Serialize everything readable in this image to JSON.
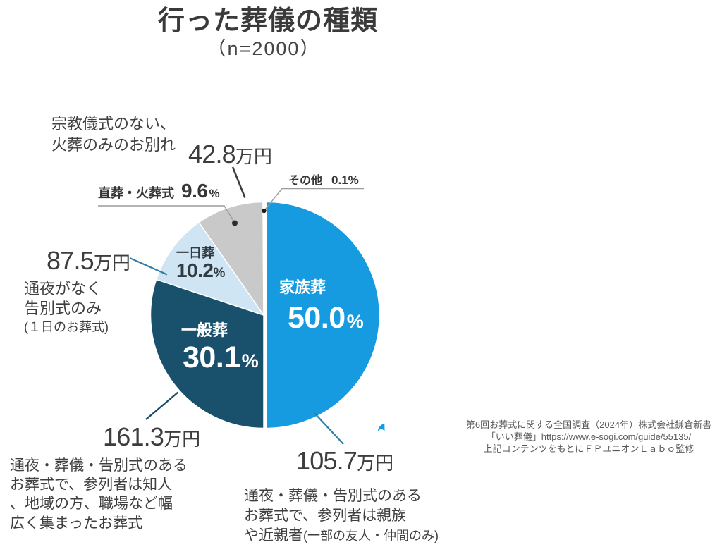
{
  "title": "行った葬儀の種類",
  "subtitle": "（n=2000）",
  "chart_data": {
    "type": "pie",
    "title": "行った葬儀の種類",
    "subtitle": "（n=2000）",
    "sample_size": 2000,
    "unit": "%",
    "start_angle_deg": 0,
    "direction": "clockwise",
    "slices": [
      {
        "label": "家族葬",
        "value": 50.0,
        "color": "#169BE0",
        "exploded": true,
        "average_cost": "105.7万円",
        "description": "通夜・葬儀・告別式のあるお葬式で、参列者は親族や近親者(一部の友人・仲間のみ)"
      },
      {
        "label": "一般葬",
        "value": 30.1,
        "color": "#19516C",
        "exploded": false,
        "average_cost": "161.3万円",
        "description": "通夜・葬儀・告別式のあるお葬式で、参列者は知人、地域の方、職場など幅広く集まったお葬式"
      },
      {
        "label": "一日葬",
        "value": 10.2,
        "color": "#CFE5F4",
        "exploded": false,
        "average_cost": "87.5万円",
        "description": "通夜がなく告別式のみ(１日のお葬式)"
      },
      {
        "label": "直葬・火葬式",
        "value": 9.6,
        "color": "#C9C9C9",
        "exploded": false,
        "average_cost": "42.8万円",
        "description": "宗教儀式のない、火葬のみのお別れ"
      },
      {
        "label": "その他",
        "value": 0.1,
        "color": "#FFFFFF",
        "exploded": false
      }
    ]
  },
  "annotations": {
    "kazokuso": {
      "name": "家族葬",
      "pct": "50.0",
      "pct_unit": "%",
      "price": "105.7",
      "price_unit": "万円",
      "desc1": "通夜・葬儀・告別式のある",
      "desc2": "お葬式で、参列者は親族",
      "desc3": "や近親者",
      "desc3_small": "(一部の友人・仲間のみ)"
    },
    "ippanso": {
      "name": "一般葬",
      "pct": "30.1",
      "pct_unit": "%",
      "price": "161.3",
      "price_unit": "万円",
      "desc1": "通夜・葬儀・告別式のある",
      "desc2": "お葬式で、参列者は知人",
      "desc3": "、地域の方、職場など幅",
      "desc4": "広く集まったお葬式"
    },
    "ichinichiso": {
      "name": "一日葬",
      "pct": "10.2",
      "pct_unit": "%",
      "price": "87.5",
      "price_unit": "万円",
      "desc1": "通夜がなく",
      "desc2": "告別式のみ",
      "desc3_small": "(１日のお葬式)"
    },
    "chokuso": {
      "name": "直葬・火葬式",
      "pct": "9.6",
      "pct_unit": "%",
      "price": "42.8",
      "price_unit": "万円",
      "desc1": "宗教儀式のない、",
      "desc2": "火葬のみのお別れ"
    },
    "sonota": {
      "name": "その他",
      "pct": "0.1",
      "pct_unit": "%"
    }
  },
  "source": {
    "line1": "第6回お葬式に関する全国調査（2024年）株式会社鎌倉新書",
    "line2": "「いい葬儀」https://www.e-sogi.com/guide/55135/",
    "line3": "上記コンテンツをもとにＦＰユニオンＬａｂｏ監修"
  },
  "colors": {
    "kazokuso": "#169BE0",
    "ippanso": "#19516C",
    "ichinichiso": "#CFE5F4",
    "chokuso": "#C9C9C9",
    "leader_teal": "#2F7EA7",
    "leader_navy": "#1B4D68",
    "leader_dark": "#3D3D3D",
    "leader_gray": "#9B9B9B"
  }
}
